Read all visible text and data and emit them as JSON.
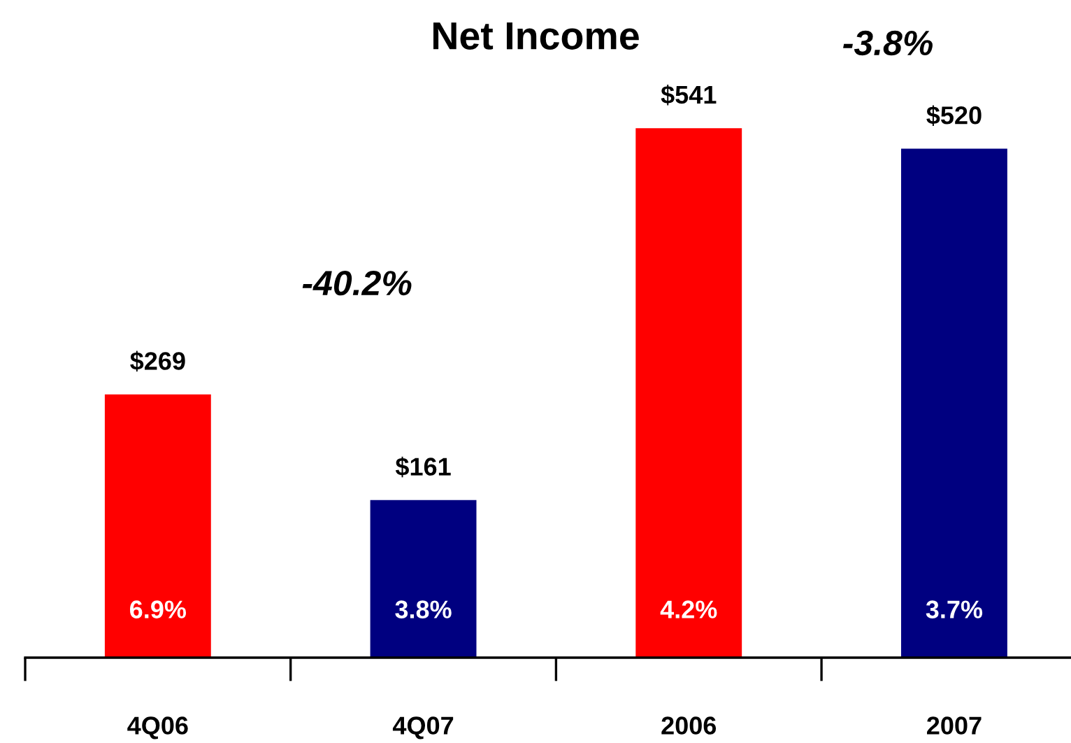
{
  "chart_data": {
    "type": "bar",
    "title": "Net Income",
    "categories": [
      "4Q06",
      "4Q07",
      "2006",
      "2007"
    ],
    "values": [
      269,
      161,
      541,
      520
    ],
    "colors": [
      "#ff0000",
      "#000080",
      "#ff0000",
      "#000080"
    ],
    "value_labels": [
      "$269",
      "$161",
      "$541",
      "$520"
    ],
    "annotations": [
      "6.9%",
      "3.8%",
      "4.2%",
      "3.7%",
      "-40.2%",
      "-3.8%"
    ],
    "grid": false,
    "legend": false
  }
}
